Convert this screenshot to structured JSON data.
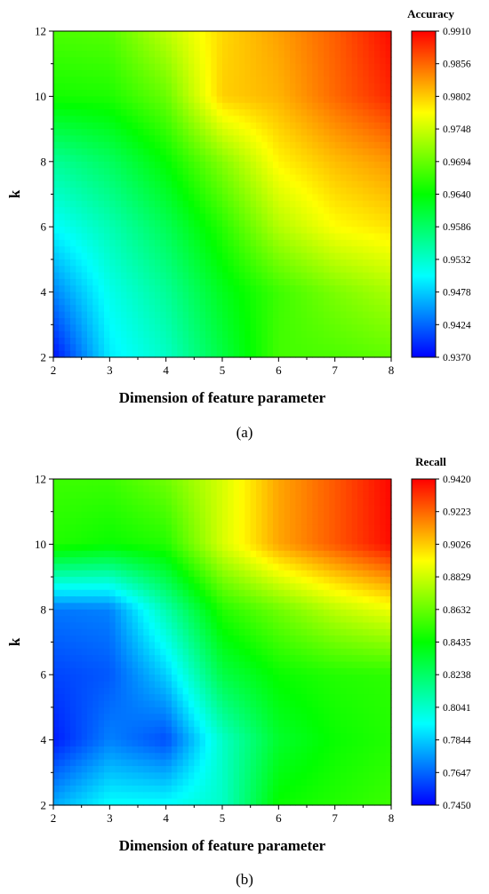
{
  "chart_data": [
    {
      "type": "heatmap",
      "panel_label": "(a)",
      "colorbar_title": "Accuracy",
      "xlabel": "Dimension of feature parameter",
      "ylabel": "k",
      "xlim": [
        2,
        8
      ],
      "ylim": [
        2,
        12
      ],
      "x_ticks": [
        "2",
        "3",
        "4",
        "5",
        "6",
        "7",
        "8"
      ],
      "y_ticks": [
        "2",
        "4",
        "6",
        "8",
        "10",
        "12"
      ],
      "colorbar_ticks": [
        "0.9370",
        "0.9424",
        "0.9478",
        "0.9532",
        "0.9586",
        "0.9640",
        "0.9694",
        "0.9748",
        "0.9802",
        "0.9856",
        "0.9910"
      ],
      "vmin": 0.937,
      "vmax": 0.991,
      "colormap": [
        "#0000ff",
        "#00ffff",
        "#00ff00",
        "#ffff00",
        "#ff0000"
      ],
      "x": [
        2,
        3,
        4,
        5,
        6,
        7,
        8
      ],
      "y": [
        2,
        4,
        6,
        8,
        10,
        12
      ],
      "z": [
        [
          0.9378,
          0.9495,
          0.9535,
          0.9605,
          0.9675,
          0.968,
          0.969
        ],
        [
          0.944,
          0.9515,
          0.956,
          0.9625,
          0.9672,
          0.9705,
          0.973
        ],
        [
          0.9505,
          0.9545,
          0.9595,
          0.966,
          0.9735,
          0.9775,
          0.979
        ],
        [
          0.956,
          0.959,
          0.964,
          0.971,
          0.978,
          0.981,
          0.983
        ],
        [
          0.965,
          0.9655,
          0.9695,
          0.98,
          0.9815,
          0.9855,
          0.989
        ],
        [
          0.968,
          0.9685,
          0.974,
          0.9795,
          0.9825,
          0.986,
          0.9905
        ]
      ]
    },
    {
      "type": "heatmap",
      "panel_label": "(b)",
      "colorbar_title": "Recall",
      "xlabel": "Dimension of feature parameter",
      "ylabel": "k",
      "xlim": [
        2,
        8
      ],
      "ylim": [
        2,
        12
      ],
      "x_ticks": [
        "2",
        "3",
        "4",
        "5",
        "6",
        "7",
        "8"
      ],
      "y_ticks": [
        "2",
        "4",
        "6",
        "8",
        "10",
        "12"
      ],
      "colorbar_ticks": [
        "0.7450",
        "0.7647",
        "0.7844",
        "0.8041",
        "0.8238",
        "0.8435",
        "0.8632",
        "0.8829",
        "0.9026",
        "0.9223",
        "0.9420"
      ],
      "vmin": 0.745,
      "vmax": 0.942,
      "colormap": [
        "#0000ff",
        "#00ffff",
        "#00ff00",
        "#ffff00",
        "#ff0000"
      ],
      "x": [
        2,
        3,
        4,
        5,
        6,
        7,
        8
      ],
      "y": [
        2,
        4,
        6,
        8,
        10,
        12
      ],
      "z": [
        [
          0.778,
          0.795,
          0.795,
          0.805,
          0.845,
          0.85,
          0.855
        ],
        [
          0.75,
          0.77,
          0.76,
          0.805,
          0.835,
          0.845,
          0.85
        ],
        [
          0.758,
          0.762,
          0.785,
          0.83,
          0.845,
          0.85,
          0.852
        ],
        [
          0.768,
          0.77,
          0.81,
          0.85,
          0.865,
          0.88,
          0.89
        ],
        [
          0.85,
          0.845,
          0.85,
          0.885,
          0.91,
          0.925,
          0.94
        ],
        [
          0.855,
          0.855,
          0.865,
          0.885,
          0.91,
          0.925,
          0.941
        ]
      ]
    }
  ]
}
